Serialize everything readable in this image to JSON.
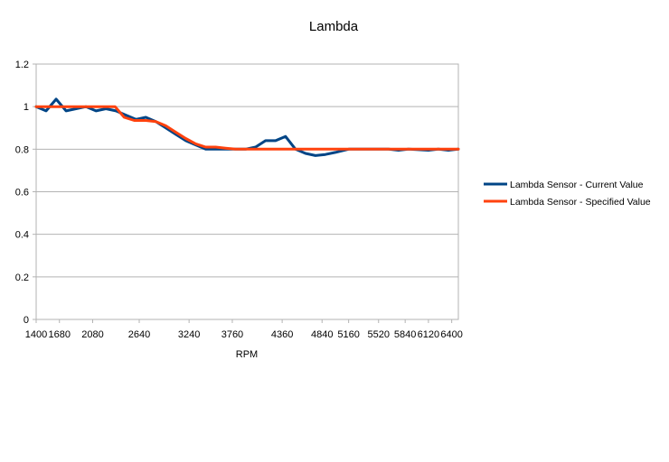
{
  "chart_data": {
    "type": "line",
    "title": "Lambda",
    "xlabel": "RPM",
    "ylabel": "",
    "xlim": [
      1400,
      6480
    ],
    "ylim": [
      0,
      1.2
    ],
    "x_ticks": [
      1400,
      1680,
      2080,
      2640,
      3240,
      3760,
      4360,
      4840,
      5160,
      5520,
      5840,
      6120,
      6400
    ],
    "y_ticks": [
      0,
      0.2,
      0.4,
      0.6,
      0.8,
      1,
      1.2
    ],
    "y_tick_labels": [
      "0",
      "0.2",
      "0.4",
      "0.6",
      "0.8",
      "1",
      "1.2"
    ],
    "grid": "horizontal",
    "legend_position": "right",
    "series": [
      {
        "name": "Lambda Sensor - Current Value",
        "color": "#004586",
        "points": [
          [
            1400,
            1.0
          ],
          [
            1520,
            0.98
          ],
          [
            1640,
            1.035
          ],
          [
            1760,
            0.98
          ],
          [
            1880,
            0.99
          ],
          [
            2000,
            1.0
          ],
          [
            2120,
            0.98
          ],
          [
            2240,
            0.99
          ],
          [
            2360,
            0.98
          ],
          [
            2480,
            0.96
          ],
          [
            2600,
            0.94
          ],
          [
            2720,
            0.95
          ],
          [
            2840,
            0.93
          ],
          [
            2960,
            0.9
          ],
          [
            3080,
            0.87
          ],
          [
            3200,
            0.84
          ],
          [
            3320,
            0.82
          ],
          [
            3440,
            0.8
          ],
          [
            3560,
            0.8
          ],
          [
            3680,
            0.8
          ],
          [
            3800,
            0.8
          ],
          [
            3920,
            0.8
          ],
          [
            4040,
            0.81
          ],
          [
            4160,
            0.84
          ],
          [
            4280,
            0.84
          ],
          [
            4400,
            0.86
          ],
          [
            4520,
            0.8
          ],
          [
            4640,
            0.78
          ],
          [
            4760,
            0.77
          ],
          [
            4880,
            0.775
          ],
          [
            5000,
            0.785
          ],
          [
            5160,
            0.8
          ],
          [
            5400,
            0.8
          ],
          [
            5640,
            0.8
          ],
          [
            5760,
            0.795
          ],
          [
            5880,
            0.8
          ],
          [
            6120,
            0.795
          ],
          [
            6240,
            0.8
          ],
          [
            6360,
            0.795
          ],
          [
            6480,
            0.8
          ]
        ]
      },
      {
        "name": "Lambda Sensor - Specified Value",
        "color": "#ff420e",
        "points": [
          [
            1400,
            1.0
          ],
          [
            2000,
            1.0
          ],
          [
            2350,
            1.0
          ],
          [
            2460,
            0.95
          ],
          [
            2580,
            0.935
          ],
          [
            2720,
            0.935
          ],
          [
            2840,
            0.93
          ],
          [
            2960,
            0.91
          ],
          [
            3080,
            0.88
          ],
          [
            3200,
            0.85
          ],
          [
            3320,
            0.825
          ],
          [
            3440,
            0.81
          ],
          [
            3560,
            0.81
          ],
          [
            3680,
            0.805
          ],
          [
            3800,
            0.8
          ],
          [
            6480,
            0.8
          ]
        ]
      }
    ]
  }
}
